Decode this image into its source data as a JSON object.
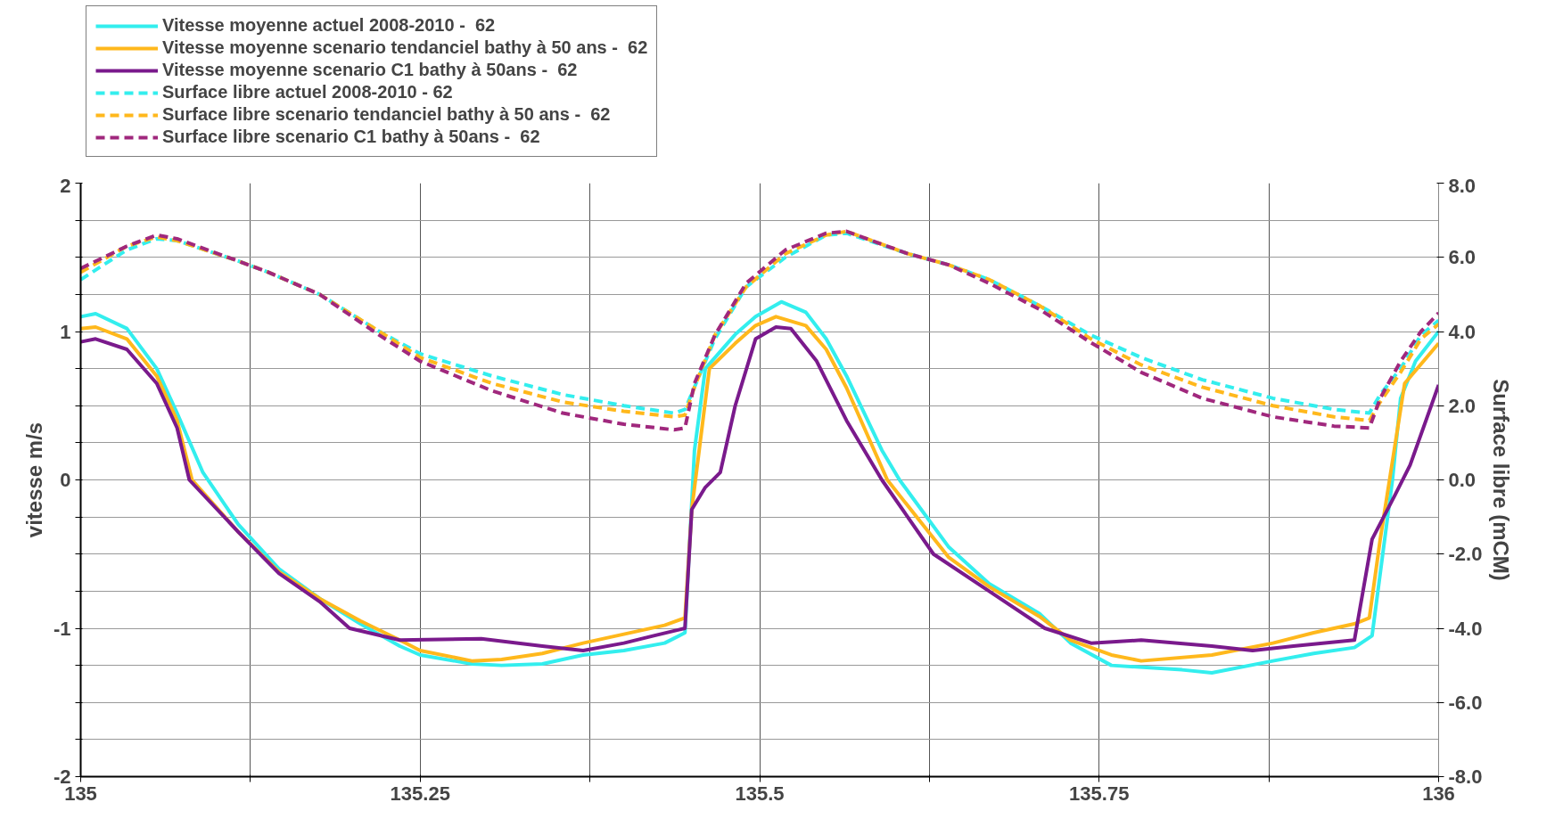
{
  "chart_data": {
    "type": "line",
    "ylabel": "vitesse m/s",
    "y2label": "Surface libre (mCM)",
    "xlim": [
      135,
      136
    ],
    "xticks": [
      135,
      {
        "value": 135.125,
        "label": null
      },
      135.25,
      {
        "value": 135.375,
        "label": null
      },
      135.5,
      {
        "value": 135.625,
        "label": null
      },
      135.75,
      {
        "value": 135.875,
        "label": null
      },
      136
    ],
    "ylim": [
      -2,
      2
    ],
    "yticks": [
      -2,
      {
        "value": -1.75,
        "label": null
      },
      {
        "value": -1.5,
        "label": null
      },
      {
        "value": -1.25,
        "label": null
      },
      -1,
      {
        "value": -0.75,
        "label": null
      },
      {
        "value": -0.5,
        "label": null
      },
      {
        "value": -0.25,
        "label": null
      },
      0,
      {
        "value": 0.25,
        "label": null
      },
      {
        "value": 0.5,
        "label": null
      },
      {
        "value": 0.75,
        "label": null
      },
      1,
      {
        "value": 1.25,
        "label": null
      },
      {
        "value": 1.5,
        "label": null
      },
      {
        "value": 1.75,
        "label": null
      },
      2
    ],
    "y2lim": [
      -8,
      8
    ],
    "y2ticks": [
      {
        "value": -8,
        "label": "-8.0"
      },
      {
        "value": -6,
        "label": "-6.0"
      },
      {
        "value": -4,
        "label": "-4.0"
      },
      {
        "value": -2,
        "label": "-2.0"
      },
      {
        "value": 0,
        "label": "0.0"
      },
      {
        "value": 2,
        "label": "2.0"
      },
      {
        "value": 4,
        "label": "4.0"
      },
      {
        "value": 6,
        "label": "6.0"
      },
      {
        "value": 8,
        "label": "8.0"
      }
    ],
    "grid": true,
    "legend": "top left",
    "marker": "none",
    "series": [
      {
        "name": "Vitesse moyenne actuel 2008-2010 -  62",
        "color": "#33eeee",
        "line_style": "solid",
        "x": [
          135.0,
          135.011,
          135.034,
          135.056,
          135.071,
          135.09,
          135.116,
          135.146,
          135.176,
          135.206,
          135.235,
          135.25,
          135.288,
          135.31,
          135.34,
          135.37,
          135.4,
          135.43,
          135.445,
          135.452,
          135.46,
          135.482,
          135.497,
          135.516,
          135.534,
          135.549,
          135.564,
          135.59,
          135.603,
          135.639,
          135.669,
          135.706,
          135.729,
          135.759,
          135.811,
          135.833,
          135.878,
          135.908,
          135.938,
          135.951,
          135.966,
          135.972,
          135.983,
          136.0
        ],
        "values": [
          1.1,
          1.12,
          1.02,
          0.75,
          0.45,
          0.05,
          -0.3,
          -0.6,
          -0.8,
          -0.97,
          -1.12,
          -1.18,
          -1.24,
          -1.25,
          -1.24,
          -1.18,
          -1.15,
          -1.1,
          -1.03,
          0.2,
          0.75,
          0.98,
          1.1,
          1.2,
          1.13,
          0.95,
          0.7,
          0.2,
          0,
          -0.45,
          -0.7,
          -0.9,
          -1.1,
          -1.25,
          -1.28,
          -1.3,
          -1.22,
          -1.17,
          -1.13,
          -1.05,
          0.0,
          0.55,
          0.8,
          1.0
        ]
      },
      {
        "name": "Vitesse moyenne scenario tendanciel bathy à 50 ans -  62",
        "color": "#ffb81c",
        "line_style": "solid",
        "x": [
          135.0,
          135.011,
          135.034,
          135.056,
          135.071,
          135.082,
          135.116,
          135.146,
          135.176,
          135.206,
          135.235,
          135.25,
          135.288,
          135.31,
          135.34,
          135.37,
          135.4,
          135.43,
          135.445,
          135.45,
          135.463,
          135.482,
          135.497,
          135.512,
          135.534,
          135.549,
          135.564,
          135.594,
          135.639,
          135.669,
          135.706,
          135.729,
          135.759,
          135.781,
          135.833,
          135.878,
          135.908,
          135.938,
          135.949,
          135.957,
          135.975,
          136.0
        ],
        "values": [
          1.02,
          1.03,
          0.95,
          0.7,
          0.4,
          0.0,
          -0.35,
          -0.62,
          -0.8,
          -0.95,
          -1.08,
          -1.15,
          -1.22,
          -1.21,
          -1.17,
          -1.1,
          -1.04,
          -0.98,
          -0.93,
          -0.2,
          0.75,
          0.92,
          1.04,
          1.1,
          1.04,
          0.88,
          0.62,
          0.0,
          -0.52,
          -0.72,
          -0.92,
          -1.08,
          -1.18,
          -1.22,
          -1.18,
          -1.1,
          -1.03,
          -0.97,
          -0.93,
          -0.4,
          0.65,
          0.92
        ]
      },
      {
        "name": "Vitesse moyenne scenario C1 bathy à 50ans -  62",
        "color": "#7a1a8c",
        "line_style": "solid",
        "x": [
          135.0,
          135.011,
          135.034,
          135.056,
          135.071,
          135.08,
          135.116,
          135.146,
          135.176,
          135.198,
          135.235,
          135.295,
          135.34,
          135.37,
          135.4,
          135.422,
          135.445,
          135.45,
          135.46,
          135.471,
          135.482,
          135.497,
          135.512,
          135.523,
          135.542,
          135.564,
          135.59,
          135.628,
          135.669,
          135.71,
          135.744,
          135.781,
          135.833,
          135.863,
          135.893,
          135.938,
          135.951,
          135.968,
          135.979,
          136.0
        ],
        "values": [
          0.93,
          0.95,
          0.88,
          0.65,
          0.35,
          0.0,
          -0.35,
          -0.63,
          -0.82,
          -1.0,
          -1.08,
          -1.07,
          -1.12,
          -1.15,
          -1.1,
          -1.05,
          -1.0,
          -0.2,
          -0.05,
          0.05,
          0.5,
          0.95,
          1.03,
          1.02,
          0.8,
          0.4,
          0.0,
          -0.5,
          -0.75,
          -1.0,
          -1.1,
          -1.08,
          -1.12,
          -1.15,
          -1.12,
          -1.08,
          -0.4,
          -0.1,
          0.1,
          0.64
        ]
      },
      {
        "name": "Surface libre actuel 2008-2010 - 62",
        "color": "#33eeee",
        "line_style": "dashed",
        "axis": "y2",
        "x": [
          135.0,
          135.034,
          135.056,
          135.071,
          135.116,
          135.138,
          135.176,
          135.22,
          135.25,
          135.303,
          135.355,
          135.4,
          135.437,
          135.445,
          135.452,
          135.467,
          135.49,
          135.519,
          135.549,
          135.564,
          135.609,
          135.639,
          135.669,
          135.706,
          135.744,
          135.781,
          135.826,
          135.878,
          135.923,
          135.949,
          135.957,
          135.972,
          135.987,
          136.0
        ],
        "values": [
          5.4,
          6.2,
          6.5,
          6.45,
          5.9,
          5.6,
          5.0,
          4.0,
          3.4,
          2.8,
          2.3,
          2.0,
          1.8,
          1.9,
          2.5,
          3.8,
          5.2,
          6.0,
          6.6,
          6.65,
          6.1,
          5.8,
          5.4,
          4.7,
          3.9,
          3.3,
          2.7,
          2.2,
          1.9,
          1.8,
          2.3,
          3.0,
          3.9,
          4.3
        ]
      },
      {
        "name": "Surface libre scenario tendanciel bathy à 50 ans -  62",
        "color": "#ffb81c",
        "line_style": "dashed",
        "axis": "y2",
        "x": [
          135.0,
          135.034,
          135.056,
          135.071,
          135.116,
          135.138,
          135.176,
          135.22,
          135.25,
          135.303,
          135.355,
          135.4,
          135.437,
          135.445,
          135.452,
          135.467,
          135.49,
          135.519,
          135.549,
          135.564,
          135.609,
          135.639,
          135.669,
          135.706,
          135.744,
          135.781,
          135.826,
          135.878,
          135.923,
          135.949,
          135.957,
          135.972,
          135.987,
          136.0
        ],
        "values": [
          5.6,
          6.3,
          6.55,
          6.45,
          5.9,
          5.6,
          5.0,
          4.0,
          3.3,
          2.6,
          2.1,
          1.85,
          1.7,
          1.75,
          2.5,
          3.9,
          5.2,
          6.1,
          6.6,
          6.7,
          6.1,
          5.8,
          5.4,
          4.7,
          3.8,
          3.1,
          2.5,
          2.0,
          1.7,
          1.6,
          2.1,
          2.9,
          3.8,
          4.2
        ]
      },
      {
        "name": "Surface libre scenario C1 bathy à 50ans -  62",
        "color": "#a0287d",
        "line_style": "dashed",
        "axis": "y2",
        "x": [
          135.0,
          135.034,
          135.056,
          135.071,
          135.116,
          135.138,
          135.176,
          135.22,
          135.25,
          135.303,
          135.355,
          135.4,
          135.437,
          135.445,
          135.452,
          135.467,
          135.49,
          135.519,
          135.549,
          135.564,
          135.609,
          135.639,
          135.669,
          135.706,
          135.744,
          135.781,
          135.826,
          135.878,
          135.923,
          135.949,
          135.957,
          135.972,
          135.987,
          136.0
        ],
        "values": [
          5.7,
          6.3,
          6.6,
          6.5,
          5.9,
          5.6,
          5.0,
          3.9,
          3.2,
          2.4,
          1.8,
          1.5,
          1.35,
          1.4,
          2.6,
          3.9,
          5.3,
          6.2,
          6.65,
          6.7,
          6.1,
          5.8,
          5.3,
          4.6,
          3.7,
          2.9,
          2.2,
          1.7,
          1.45,
          1.4,
          2.2,
          3.2,
          4.0,
          4.5
        ]
      }
    ]
  }
}
